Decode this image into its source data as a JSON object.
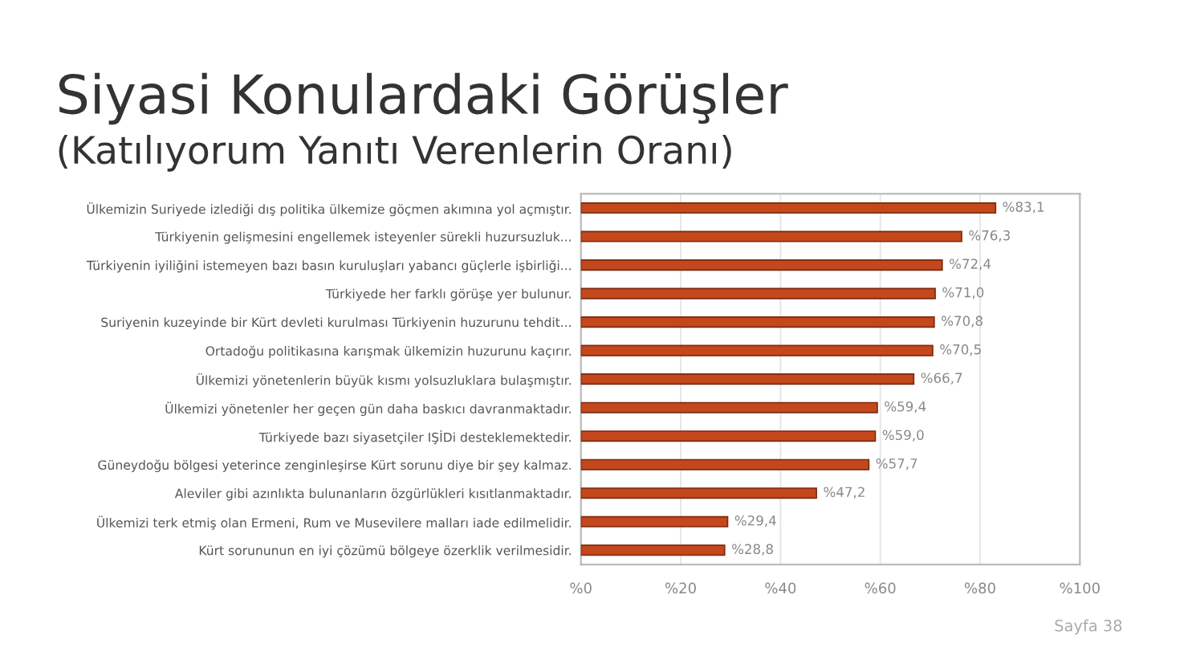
{
  "chart_data": {
    "type": "bar",
    "orientation": "horizontal",
    "title": "Siyasi Konulardaki Görüşler",
    "subtitle": "(Katılıyorum Yanıtı Verenlerin Oranı)",
    "categories": [
      "Ülkemizin Suriyede izlediği dış politika ülkemize göçmen akımına yol açmıştır.",
      "Türkiyenin gelişmesini engellemek isteyenler sürekli huzursuzluk...",
      "Türkiyenin iyiliğini istemeyen bazı basın kuruluşları yabancı güçlerle işbirliği...",
      "Türkiyede her farklı görüşe yer bulunur.",
      "Suriyenin kuzeyinde bir Kürt devleti kurulması Türkiyenin huzurunu tehdit...",
      "Ortadoğu politikasına karışmak ülkemizin huzurunu kaçırır.",
      "Ülkemizi yönetenlerin büyük kısmı yolsuzluklara bulaşmıştır.",
      "Ülkemizi yönetenler her geçen gün daha baskıcı davranmaktadır.",
      "Türkiyede bazı siyasetçiler IŞİDi desteklemektedir.",
      "Güneydoğu bölgesi yeterince zenginleşirse Kürt sorunu diye bir şey kalmaz.",
      "Aleviler gibi azınlıkta bulunanların özgürlükleri kısıtlanmaktadır.",
      "Ülkemizi terk etmiş olan Ermeni, Rum ve Musevilere malları iade edilmelidir.",
      "Kürt sorununun en iyi çözümü bölgeye özerklik verilmesidir."
    ],
    "values": [
      83.1,
      76.3,
      72.4,
      71.0,
      70.8,
      70.5,
      66.7,
      59.4,
      59.0,
      57.7,
      47.2,
      29.4,
      28.8
    ],
    "value_labels": [
      "%83,1",
      "%76,3",
      "%72,4",
      "%71,0",
      "%70,8",
      "%70,5",
      "%66,7",
      "%59,4",
      "%59,0",
      "%57,7",
      "%47,2",
      "%29,4",
      "%28,8"
    ],
    "color": "#c4481c",
    "xlim": [
      0,
      100
    ],
    "xticks": [
      {
        "value": 0,
        "label": "%0"
      },
      {
        "value": 20,
        "label": "%20"
      },
      {
        "value": 40,
        "label": "%40"
      },
      {
        "value": 60,
        "label": "%60"
      },
      {
        "value": 80,
        "label": "%80"
      },
      {
        "value": 100,
        "label": "%100"
      }
    ],
    "grid": "x",
    "annotations": [
      "Sayfa 38"
    ]
  }
}
